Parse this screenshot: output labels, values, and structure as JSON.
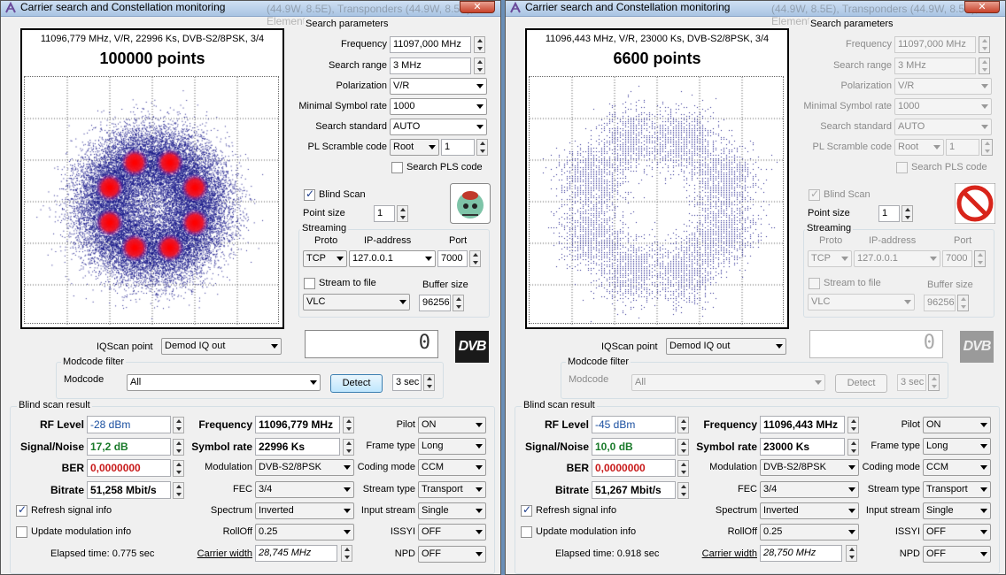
{
  "windows": [
    {
      "title": "Carrier search and Constellation monitoring",
      "title_behind": "(44.9W, 8.5E), Transponders (44.9W, 8.5E), Element",
      "disabled": false,
      "plot": {
        "info": "11096,779 MHz, V/R, 22996 Ks, DVB-S2/8PSK, 3/4",
        "points_label": "100000 points",
        "style": "dense"
      },
      "search": {
        "title": "Search parameters",
        "frequency_label": "Frequency",
        "frequency": "11097,000 MHz",
        "range_label": "Search range",
        "range": "3 MHz",
        "polarization_label": "Polarization",
        "polarization": "V/R",
        "min_sr_label": "Minimal Symbol rate",
        "min_sr": "1000",
        "standard_label": "Search standard",
        "standard": "AUTO",
        "pl_label": "PL Scramble code",
        "pl_mode": "Root",
        "pl_value": "1",
        "search_pls_label": "Search PLS code",
        "search_pls": false
      },
      "blind_scan_label": "Blind Scan",
      "blind_scan": true,
      "point_size_label": "Point size",
      "point_size": "1",
      "status_icon": "satellite-dish-icon",
      "streaming": {
        "title": "Streaming",
        "proto_label": "Proto",
        "ip_label": "IP-address",
        "port_label": "Port",
        "proto": "TCP",
        "ip": "127.0.0.1",
        "port": "7000",
        "to_file_label": "Stream to file",
        "to_file": false,
        "buffer_label": "Buffer size",
        "player": "VLC",
        "buffer": "96256"
      },
      "iqscan_label": "IQScan point",
      "iqscan": "Demod IQ out",
      "lcd": "0",
      "dvb_logo": "DVB",
      "modcode": {
        "title": "Modcode filter",
        "label": "Modcode",
        "value": "All",
        "detect": "Detect",
        "time": "3 sec"
      },
      "result": {
        "title": "Blind scan result",
        "rf_label": "RF Level",
        "rf": "-28 dBm",
        "sn_label": "Signal/Noise",
        "sn": "17,2 dB",
        "ber_label": "BER",
        "ber": "0,0000000",
        "bitrate_label": "Bitrate",
        "bitrate": "51,258 Mbit/s",
        "freq_label": "Frequency",
        "freq": "11096,779 MHz",
        "sr_label": "Symbol rate",
        "sr": "22996 Ks",
        "mod_label": "Modulation",
        "mod": "DVB-S2/8PSK",
        "fec_label": "FEC",
        "fec": "3/4",
        "spectrum_label": "Spectrum",
        "spectrum": "Inverted",
        "rolloff_label": "RollOff",
        "rolloff": "0.25",
        "cw_label": "Carrier width",
        "cw": "28,745 MHz",
        "pilot_label": "Pilot",
        "pilot": "ON",
        "frame_label": "Frame type",
        "frame": "Long",
        "coding_label": "Coding mode",
        "coding": "CCM",
        "stype_label": "Stream type",
        "stype": "Transport",
        "input_label": "Input stream",
        "input": "Single",
        "issyi_label": "ISSYI",
        "issyi": "OFF",
        "npd_label": "NPD",
        "npd": "OFF",
        "refresh_label": "Refresh signal info",
        "refresh": true,
        "update_label": "Update modulation info",
        "update": false,
        "elapsed": "Elapsed time: 0.775 sec"
      }
    },
    {
      "title": "Carrier search and Constellation monitoring",
      "title_behind": "(44.9W, 8.5E), Transponders (44.9W, 8.5E), Element",
      "disabled": true,
      "plot": {
        "info": "11096,443 MHz, V/R, 23000 Ks, DVB-S2/8PSK, 3/4",
        "points_label": "6600 points",
        "style": "sparse"
      },
      "search": {
        "title": "Search parameters",
        "frequency_label": "Frequency",
        "frequency": "11097,000 MHz",
        "range_label": "Search range",
        "range": "3 MHz",
        "polarization_label": "Polarization",
        "polarization": "V/R",
        "min_sr_label": "Minimal Symbol rate",
        "min_sr": "1000",
        "standard_label": "Search standard",
        "standard": "AUTO",
        "pl_label": "PL Scramble code",
        "pl_mode": "Root",
        "pl_value": "1",
        "search_pls_label": "Search PLS code",
        "search_pls": false
      },
      "blind_scan_label": "Blind Scan",
      "blind_scan": true,
      "point_size_label": "Point size",
      "point_size": "1",
      "status_icon": "stop-icon",
      "streaming": {
        "title": "Streaming",
        "proto_label": "Proto",
        "ip_label": "IP-address",
        "port_label": "Port",
        "proto": "TCP",
        "ip": "127.0.0.1",
        "port": "7000",
        "to_file_label": "Stream to file",
        "to_file": false,
        "buffer_label": "Buffer size",
        "player": "VLC",
        "buffer": "96256"
      },
      "iqscan_label": "IQScan point",
      "iqscan": "Demod IQ out",
      "lcd": "0",
      "dvb_logo": "DVB",
      "modcode": {
        "title": "Modcode filter",
        "label": "Modcode",
        "value": "All",
        "detect": "Detect",
        "time": "3 sec"
      },
      "result": {
        "title": "Blind scan result",
        "rf_label": "RF Level",
        "rf": "-45 dBm",
        "sn_label": "Signal/Noise",
        "sn": "10,0 dB",
        "ber_label": "BER",
        "ber": "0,0000000",
        "bitrate_label": "Bitrate",
        "bitrate": "51,267 Mbit/s",
        "freq_label": "Frequency",
        "freq": "11096,443 MHz",
        "sr_label": "Symbol rate",
        "sr": "23000 Ks",
        "mod_label": "Modulation",
        "mod": "DVB-S2/8PSK",
        "fec_label": "FEC",
        "fec": "3/4",
        "spectrum_label": "Spectrum",
        "spectrum": "Inverted",
        "rolloff_label": "RollOff",
        "rolloff": "0.25",
        "cw_label": "Carrier width",
        "cw": "28,750 MHz",
        "pilot_label": "Pilot",
        "pilot": "ON",
        "frame_label": "Frame type",
        "frame": "Long",
        "coding_label": "Coding mode",
        "coding": "CCM",
        "stype_label": "Stream type",
        "stype": "Transport",
        "input_label": "Input stream",
        "input": "Single",
        "issyi_label": "ISSYI",
        "issyi": "OFF",
        "npd_label": "NPD",
        "npd": "OFF",
        "refresh_label": "Refresh signal info",
        "refresh": true,
        "update_label": "Update modulation info",
        "update": false,
        "elapsed": "Elapsed time: 0.918 sec"
      }
    }
  ]
}
